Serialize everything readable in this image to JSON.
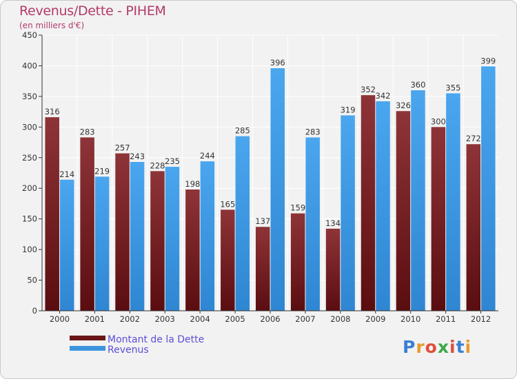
{
  "title": "Revenus/Dette - PIHEM",
  "subtitle": "(en milliers d'€)",
  "logo": {
    "letters": [
      "P",
      "r",
      "o",
      "x",
      "i",
      "t",
      "i"
    ],
    "colors": [
      "#3a7fd6",
      "#e89a2a",
      "#e0503c",
      "#3aa84a",
      "#e0503c",
      "#3a7fd6",
      "#e89a2a"
    ]
  },
  "chart_data": {
    "type": "bar",
    "categories": [
      "2000",
      "2001",
      "2002",
      "2003",
      "2004",
      "2005",
      "2006",
      "2007",
      "2008",
      "2009",
      "2010",
      "2011",
      "2012"
    ],
    "series": [
      {
        "name": "Montant de la Dette",
        "color": "#7a1f22",
        "values": [
          316,
          283,
          257,
          228,
          198,
          165,
          137,
          159,
          134,
          352,
          326,
          300,
          272
        ]
      },
      {
        "name": "Revenus",
        "color": "#3d95e0",
        "values": [
          214,
          219,
          243,
          235,
          244,
          285,
          396,
          283,
          319,
          342,
          360,
          355,
          399
        ]
      }
    ],
    "ylim": [
      0,
      450
    ],
    "yticks": [
      0,
      50,
      100,
      150,
      200,
      250,
      300,
      350,
      400,
      450
    ],
    "grid": true,
    "legend_position": "bottom-left"
  }
}
